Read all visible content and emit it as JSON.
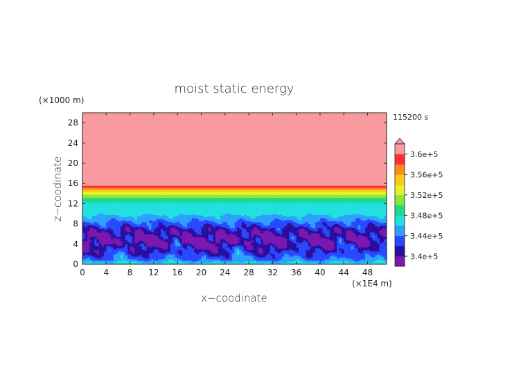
{
  "chart_data": {
    "type": "heatmap",
    "title": "moist static energy",
    "xlabel": "x−coodinate",
    "ylabel": "z−coodinate",
    "x_unit": "(×1E4 m)",
    "y_unit": "(×1000 m)",
    "time_label": "115200 s",
    "xlim": [
      0,
      51.2
    ],
    "ylim": [
      0,
      30
    ],
    "x_ticks": [
      "0",
      "4",
      "8",
      "12",
      "16",
      "20",
      "24",
      "28",
      "32",
      "36",
      "40",
      "44",
      "48"
    ],
    "y_ticks": [
      "0",
      "4",
      "8",
      "12",
      "16",
      "20",
      "24",
      "28"
    ],
    "colorbar": {
      "labels": [
        "3.6e+5",
        "3.56e+5",
        "3.52e+5",
        "3.48e+5",
        "3.44e+5",
        "3.4e+5"
      ],
      "label_values": [
        360000,
        356000,
        352000,
        348000,
        344000,
        340000
      ],
      "levels": [
        338000,
        340000,
        342000,
        344000,
        346000,
        348000,
        350000,
        352000,
        354000,
        356000,
        358000,
        360000
      ],
      "colors": [
        "#7a18b0",
        "#2a0fa0",
        "#2a48ff",
        "#2ea0ff",
        "#22e0e0",
        "#22d88a",
        "#88e83a",
        "#e8f02a",
        "#ffc81e",
        "#ff8c1e",
        "#ff3030",
        "#f89aa0"
      ],
      "extend": "both"
    },
    "profile": [
      {
        "z": 0.0,
        "value": 347500
      },
      {
        "z": 1.0,
        "value": 343500
      },
      {
        "z": 2.5,
        "value": 341000
      },
      {
        "z": 4.5,
        "value": 339000
      },
      {
        "z": 6.5,
        "value": 340500
      },
      {
        "z": 8.5,
        "value": 344000
      },
      {
        "z": 10.0,
        "value": 346500
      },
      {
        "z": 12.0,
        "value": 347500
      },
      {
        "z": 13.5,
        "value": 350500
      },
      {
        "z": 14.5,
        "value": 354500
      },
      {
        "z": 15.3,
        "value": 358500
      },
      {
        "z": 16.0,
        "value": 362000
      },
      {
        "z": 30.0,
        "value": 362000
      }
    ],
    "cold_pool_centers_x": [
      6.5,
      15.5,
      26.5,
      36.0,
      44.0,
      50.0
    ]
  }
}
